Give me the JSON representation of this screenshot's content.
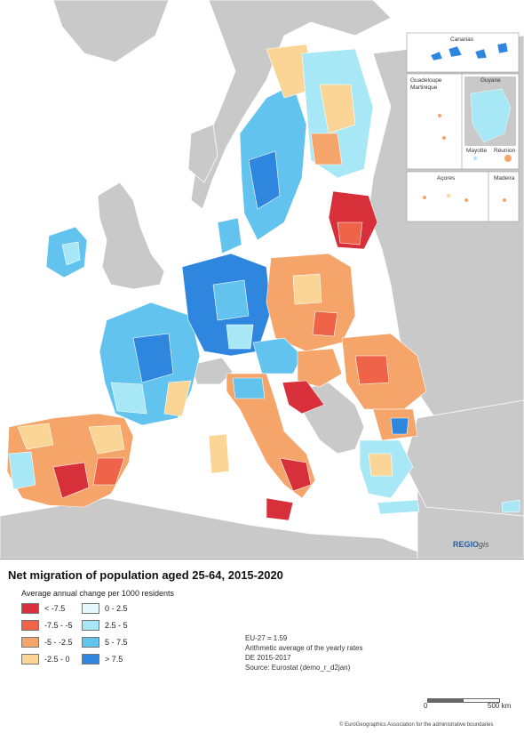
{
  "title": "Net migration of population aged 25-64, 2015-2020",
  "legend": {
    "subtitle": "Average annual change per 1000 residents",
    "classes": [
      {
        "label": "< -7.5",
        "color": "#d7303a"
      },
      {
        "label": "-7.5 - -5",
        "color": "#ef6448"
      },
      {
        "label": "-5 - -2.5",
        "color": "#f5a46a"
      },
      {
        "label": "-2.5 - 0",
        "color": "#fad596"
      },
      {
        "label": "0 - 2.5",
        "color": "#e4f8fd"
      },
      {
        "label": "2.5 - 5",
        "color": "#a8e8f6"
      },
      {
        "label": "5 - 7.5",
        "color": "#62c3ef"
      },
      {
        "label": "> 7.5",
        "color": "#2e86de"
      }
    ]
  },
  "notes": {
    "line1": "EU-27 = 1.59",
    "line2": "Arithmetic average of the yearly rates",
    "line3": "DE 2015-2017",
    "line4": "Source: Eurostat (demo_r_d2jan)"
  },
  "scale": {
    "start": "0",
    "end": "500 km"
  },
  "footnote": "© EuroGeographics Association for the administrative boundaries",
  "credit": {
    "brand": "REGIO",
    "suffix": "gis"
  },
  "insets": {
    "canarias": "Canarias",
    "guadeloupe": "Guadeloupe",
    "martinique": "Martinique",
    "guyane": "Guyane",
    "mayotte": "Mayotte",
    "reunion": "Réunion",
    "acores": "Açores",
    "madeira": "Madeira"
  },
  "colors": {
    "sea": "#ffffff",
    "non_eu_land": "#c9c9c9",
    "border": "#ffffff"
  }
}
